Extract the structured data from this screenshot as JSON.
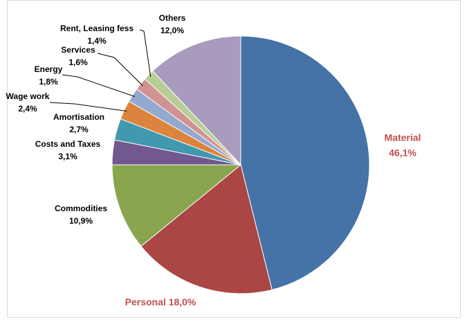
{
  "chart_data": {
    "type": "pie",
    "categories": [
      "Material",
      "Personal",
      "Commodities",
      "Costs and Taxes",
      "Amortisation",
      "Wage work",
      "Energy",
      "Services",
      "Rent, Leasing fess",
      "Others"
    ],
    "values": [
      46.1,
      18.0,
      10.9,
      3.1,
      2.7,
      2.4,
      1.8,
      1.6,
      1.4,
      12.0
    ],
    "value_labels": [
      "46,1%",
      "18,0%",
      "10,9%",
      "3,1%",
      "2,7%",
      "2,4%",
      "1,8%",
      "1,6%",
      "1,4%",
      "12,0%"
    ],
    "colors": [
      "#4572a7",
      "#aa4643",
      "#89a54e",
      "#71588f",
      "#4198af",
      "#db843d",
      "#93a9cf",
      "#d19392",
      "#b9cd96",
      "#a99bbd"
    ]
  }
}
